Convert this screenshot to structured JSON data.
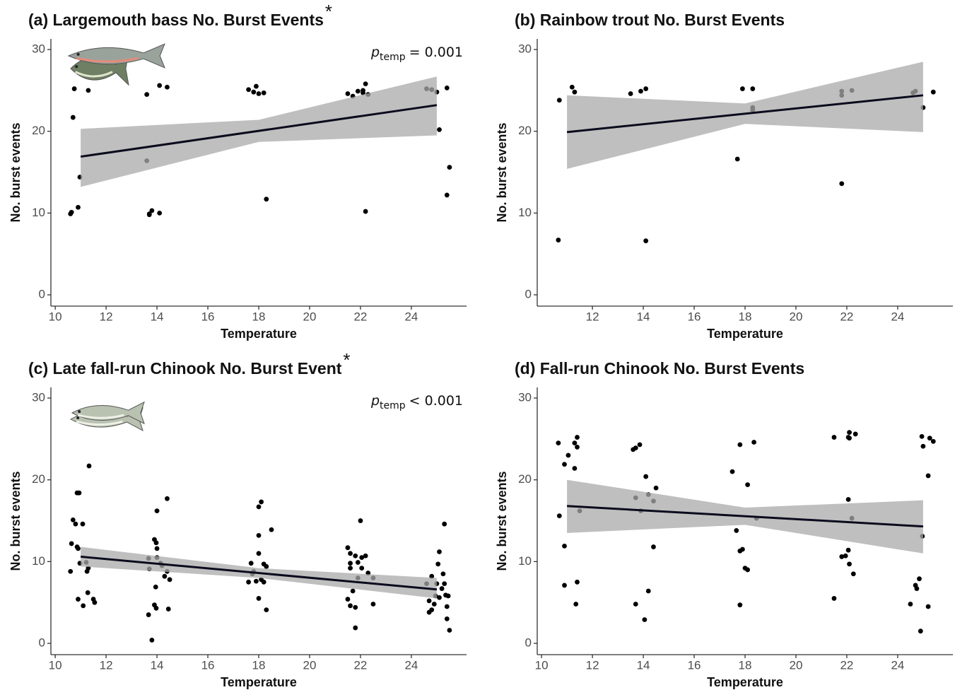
{
  "chart_data": [
    {
      "type": "scatter",
      "title": "(a) Largemouth bass No. Burst Events",
      "significance": "*",
      "xlabel": "Temperature",
      "ylabel": "No. burst events",
      "annotation": {
        "symbol": "p",
        "subscript": "temp",
        "text": "= 0.001"
      },
      "x": [
        10.64,
        10.6,
        10.9,
        10.7,
        10.75,
        10.97,
        11.3,
        13.6,
        13.6,
        13.7,
        13.8,
        13.7,
        14.1,
        14.1,
        14.4,
        17.6,
        17.9,
        17.8,
        18.0,
        18.2,
        18.3,
        21.5,
        21.7,
        21.9,
        22.1,
        22.2,
        22.1,
        22.3,
        22.2,
        24.6,
        24.8,
        25.0,
        25.1,
        25.4,
        25.5,
        25.4
      ],
      "y": [
        10.1,
        9.9,
        10.7,
        21.7,
        25.2,
        14.4,
        25.0,
        16.4,
        24.5,
        9.9,
        10.3,
        9.8,
        10.0,
        25.6,
        25.4,
        25.1,
        25.5,
        24.8,
        24.6,
        24.7,
        11.7,
        24.6,
        24.3,
        24.9,
        25.0,
        25.8,
        24.7,
        24.5,
        10.2,
        25.2,
        25.1,
        24.8,
        20.2,
        25.3,
        15.6,
        12.2
      ],
      "fit": {
        "x": [
          11,
          25
        ],
        "y": [
          16.9,
          23.2
        ]
      },
      "band": {
        "x": [
          11,
          18,
          25
        ],
        "lower": [
          13.2,
          18.7,
          19.5
        ],
        "upper": [
          20.3,
          21.4,
          26.7
        ]
      },
      "xlim": [
        9.83,
        26.17
      ],
      "ylim": [
        -1.38,
        31.3
      ],
      "xticks": [
        10,
        12,
        14,
        16,
        18,
        20,
        22,
        24
      ],
      "yticks": [
        0,
        10,
        20,
        30
      ],
      "color": "#000000",
      "fit_color": "#0b0b1e",
      "band_color": "#a9a9a9"
    },
    {
      "type": "scatter",
      "title": "(b) Rainbow trout No. Burst Events",
      "xlabel": "Temperature",
      "ylabel": "No. burst events",
      "x": [
        10.66,
        10.7,
        11.2,
        11.3,
        13.5,
        13.9,
        14.1,
        14.1,
        17.7,
        17.9,
        18.3,
        18.3,
        18.3,
        21.8,
        21.8,
        21.8,
        22.2,
        24.6,
        24.7,
        25.0,
        25.4
      ],
      "y": [
        6.7,
        23.8,
        25.4,
        24.8,
        24.6,
        24.9,
        25.2,
        6.6,
        16.6,
        25.2,
        25.2,
        22.6,
        22.9,
        13.6,
        24.9,
        24.4,
        25.0,
        24.7,
        24.9,
        22.9,
        24.8
      ],
      "fit": {
        "x": [
          11,
          25
        ],
        "y": [
          19.9,
          24.4
        ]
      },
      "band": {
        "x": [
          11,
          18,
          25
        ],
        "lower": [
          15.4,
          20.9,
          19.9
        ],
        "upper": [
          24.4,
          23.4,
          28.5
        ]
      },
      "xlim": [
        9.83,
        26.17
      ],
      "ylim": [
        -1.38,
        31.3
      ],
      "xticks": [
        12,
        14,
        16,
        18,
        20,
        22,
        24
      ],
      "yticks": [
        0,
        10,
        20,
        30
      ],
      "color": "#000000",
      "fit_color": "#0b0b1e",
      "band_color": "#a9a9a9"
    },
    {
      "type": "scatter",
      "title": "(c) Late fall-run Chinook No. Burst Event",
      "significance": "*",
      "xlabel": "Temperature",
      "ylabel": "No. burst events",
      "annotation": {
        "symbol": "p",
        "subscript": "temp",
        "text": "< 0.001"
      },
      "x": [
        10.6,
        10.64,
        10.7,
        10.8,
        10.86,
        10.86,
        10.94,
        10.9,
        10.97,
        10.9,
        11.08,
        11.1,
        11.25,
        11.3,
        11.28,
        11.33,
        11.5,
        11.55,
        11.22,
        13.67,
        13.8,
        13.67,
        13.7,
        13.9,
        13.97,
        14.0,
        14.0,
        13.95,
        13.9,
        13.97,
        14.14,
        14.0,
        14.2,
        14.3,
        14.4,
        14.5,
        14.45,
        14.4,
        17.6,
        17.7,
        17.75,
        17.8,
        17.9,
        18.0,
        18.0,
        18.0,
        18.1,
        18.0,
        18.1,
        18.2,
        18.3,
        18.3,
        18.5,
        18.2,
        21.5,
        21.6,
        21.6,
        21.6,
        21.5,
        21.6,
        21.8,
        21.8,
        21.7,
        21.8,
        21.9,
        22.05,
        22.0,
        21.9,
        22.05,
        22.2,
        22.3,
        22.5,
        22.5,
        24.6,
        24.7,
        24.7,
        24.8,
        24.8,
        24.9,
        24.95,
        25.0,
        25.05,
        25.1,
        25.2,
        25.3,
        25.25,
        25.3,
        25.35,
        25.4,
        25.4,
        25.5,
        25.45,
        25.1
      ],
      "y": [
        8.8,
        12.2,
        15.1,
        14.6,
        11.8,
        18.4,
        18.4,
        11.6,
        9.8,
        5.4,
        14.6,
        4.6,
        8.8,
        9.2,
        6.2,
        21.7,
        5.4,
        5.0,
        9.9,
        3.5,
        0.4,
        10.4,
        9.1,
        12.7,
        12.3,
        16.2,
        11.6,
        6.9,
        4.7,
        4.3,
        9.8,
        10.5,
        9.5,
        8.2,
        8.8,
        7.8,
        4.2,
        17.7,
        7.5,
        9.8,
        8.5,
        8.8,
        7.6,
        11.0,
        13.2,
        16.7,
        17.3,
        5.5,
        7.8,
        7.5,
        4.1,
        9.4,
        13.9,
        9.7,
        11.7,
        9.8,
        11.0,
        9.2,
        5.4,
        4.6,
        4.4,
        1.9,
        6.4,
        10.7,
        9.9,
        10.5,
        15.0,
        8.0,
        9.2,
        10.7,
        8.6,
        8.0,
        4.8,
        7.3,
        5.2,
        3.8,
        4.1,
        8.2,
        4.8,
        5.8,
        7.3,
        9.7,
        11.2,
        6.7,
        14.6,
        8.5,
        7.3,
        5.9,
        4.5,
        3.0,
        1.6,
        5.8,
        5.6
      ],
      "fit": {
        "x": [
          11,
          25
        ],
        "y": [
          10.6,
          6.6
        ]
      },
      "band": {
        "x": [
          11,
          18,
          25
        ],
        "lower": [
          9.4,
          8.0,
          5.5
        ],
        "upper": [
          11.8,
          9.2,
          8.0
        ]
      },
      "xlim": [
        9.83,
        26.17
      ],
      "ylim": [
        -1.38,
        31.3
      ],
      "xticks": [
        10,
        12,
        14,
        16,
        18,
        20,
        22,
        24
      ],
      "yticks": [
        0,
        10,
        20,
        30
      ],
      "color": "#000000",
      "fit_color": "#0b0b1e",
      "band_color": "#a9a9a9"
    },
    {
      "type": "scatter",
      "title": "(d) Fall-run Chinook No. Burst Events",
      "xlabel": "Temperature",
      "ylabel": "No. burst events",
      "x": [
        10.66,
        10.7,
        10.9,
        10.9,
        10.9,
        11.05,
        11.3,
        11.3,
        11.4,
        11.35,
        11.4,
        11.5,
        11.4,
        13.6,
        13.7,
        13.7,
        13.7,
        13.86,
        13.9,
        14.05,
        14.1,
        14.2,
        14.2,
        14.4,
        14.5,
        14.4,
        17.5,
        17.66,
        17.8,
        17.8,
        17.8,
        17.9,
        18.0,
        18.1,
        18.1,
        18.35,
        18.45,
        21.5,
        21.5,
        21.8,
        21.95,
        22.06,
        22.06,
        22.06,
        22.1,
        22.1,
        22.1,
        22.26,
        22.34,
        22.2,
        24.5,
        24.7,
        24.75,
        24.85,
        24.9,
        24.95,
        24.97,
        25.0,
        25.2,
        25.2,
        25.26,
        25.4
      ],
      "y": [
        24.5,
        15.6,
        21.9,
        11.9,
        7.1,
        23.0,
        24.5,
        21.4,
        7.5,
        4.8,
        25.2,
        16.2,
        24.0,
        23.7,
        23.9,
        4.8,
        17.8,
        24.3,
        16.2,
        2.9,
        20.4,
        6.4,
        18.2,
        17.4,
        19.0,
        11.8,
        21.0,
        13.8,
        24.3,
        4.7,
        11.3,
        11.5,
        9.2,
        19.4,
        9.0,
        24.6,
        15.3,
        5.5,
        25.2,
        10.6,
        10.7,
        25.2,
        17.6,
        11.4,
        9.7,
        25.8,
        25.1,
        8.5,
        25.6,
        15.3,
        4.8,
        7.1,
        6.7,
        7.9,
        1.5,
        25.3,
        13.1,
        24.1,
        4.5,
        20.5,
        25.1,
        24.7
      ],
      "fit": {
        "x": [
          11,
          25
        ],
        "y": [
          16.8,
          14.3
        ]
      },
      "band": {
        "x": [
          11,
          18,
          25
        ],
        "lower": [
          13.5,
          14.5,
          11.0
        ],
        "upper": [
          20.0,
          16.6,
          17.5
        ]
      },
      "xlim": [
        9.83,
        26.17
      ],
      "ylim": [
        -1.38,
        31.3
      ],
      "xticks": [
        10,
        12,
        14,
        16,
        18,
        20,
        22,
        24
      ],
      "yticks": [
        0,
        10,
        20,
        30
      ],
      "color": "#000000",
      "fit_color": "#0b0b1e",
      "band_color": "#a9a9a9"
    }
  ]
}
